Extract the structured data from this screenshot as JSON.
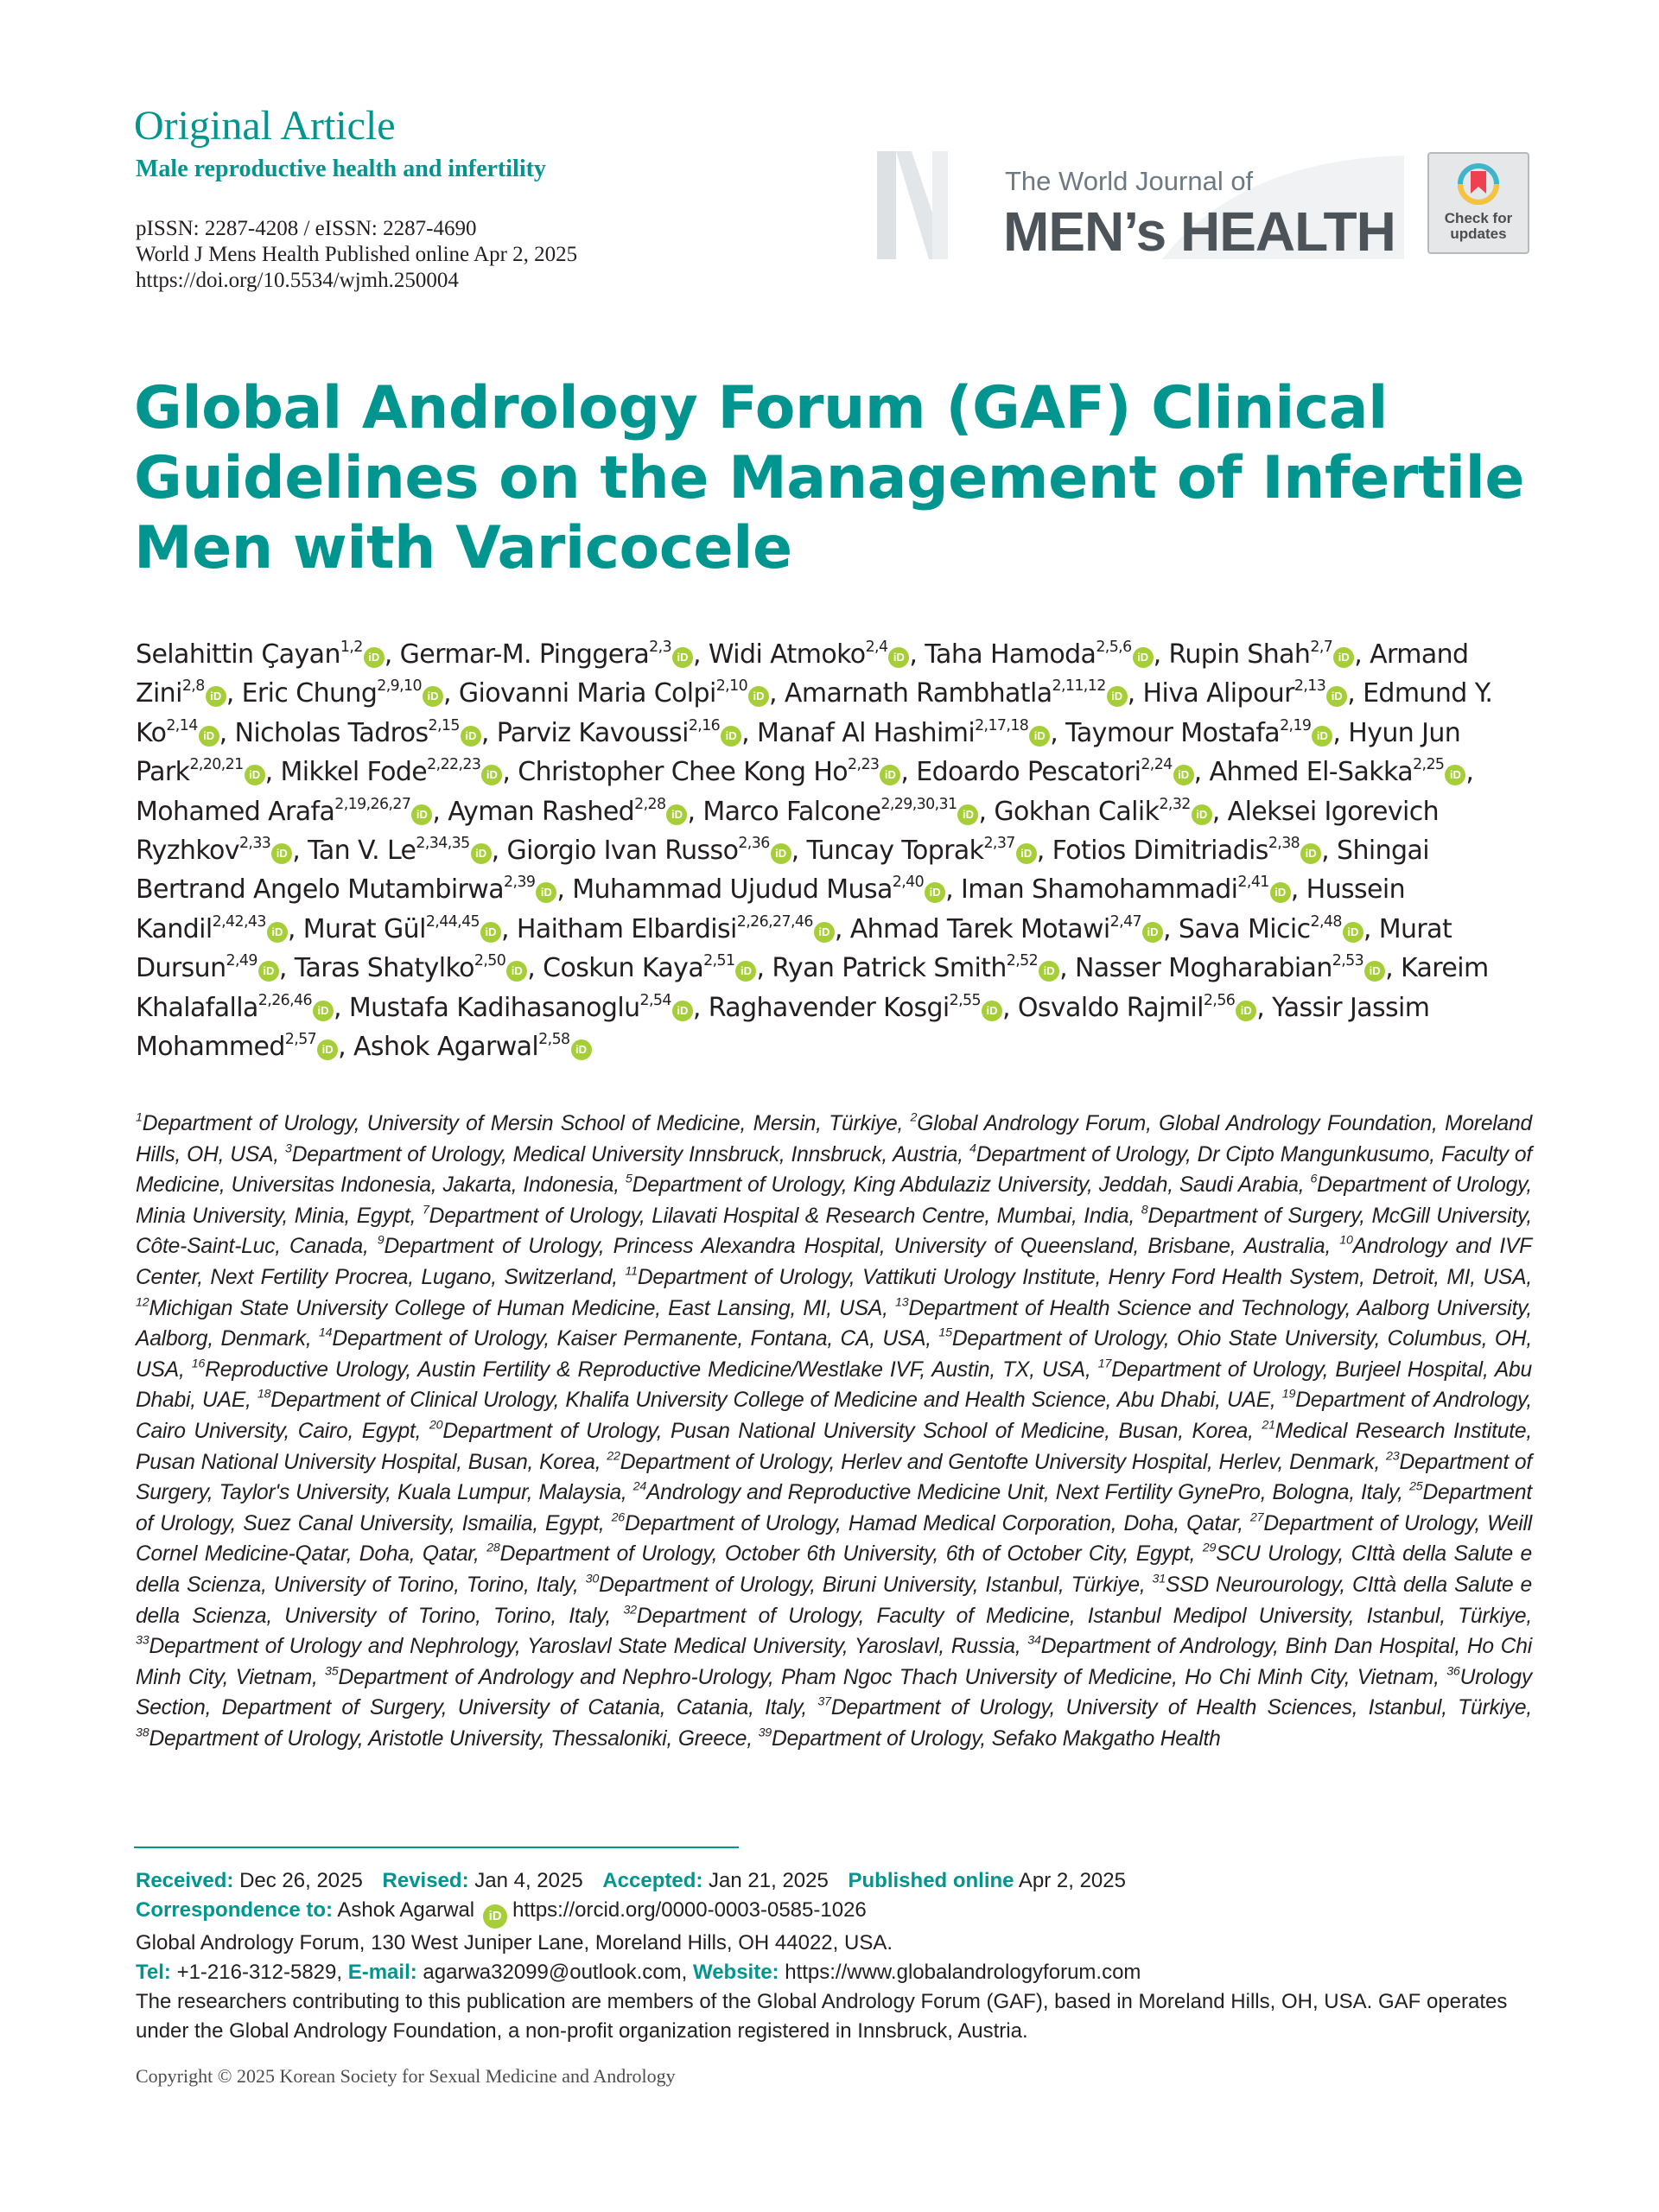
{
  "header": {
    "article_type": "Original Article",
    "section": "Male reproductive health and infertility",
    "issn": "pISSN: 2287-4208 / eISSN: 2287-4690",
    "citation": "World J Mens Health Published online Apr 2, 2025",
    "doi": "https://doi.org/10.5534/wjmh.250004"
  },
  "logo": {
    "line1": "The World Journal of",
    "line2": "MEN’s HEALTH"
  },
  "check_updates": {
    "line1": "Check for",
    "line2": "updates"
  },
  "title": "Global Andrology Forum (GAF) Clinical Guidelines on the Management of Infertile Men with Varicocele",
  "orcid_glyph": "iD",
  "colors": {
    "accent": "#00968f",
    "orcid": "#a6ce39"
  },
  "authors": [
    {
      "name": "Selahittin Çayan",
      "aff": "1,2"
    },
    {
      "name": "Germar-M. Pinggera",
      "aff": "2,3"
    },
    {
      "name": "Widi Atmoko",
      "aff": "2,4"
    },
    {
      "name": "Taha Hamoda",
      "aff": "2,5,6"
    },
    {
      "name": "Rupin Shah",
      "aff": "2,7"
    },
    {
      "name": "Armand Zini",
      "aff": "2,8"
    },
    {
      "name": "Eric Chung",
      "aff": "2,9,10"
    },
    {
      "name": "Giovanni Maria Colpi",
      "aff": "2,10"
    },
    {
      "name": "Amarnath Rambhatla",
      "aff": "2,11,12"
    },
    {
      "name": "Hiva Alipour",
      "aff": "2,13"
    },
    {
      "name": "Edmund Y. Ko",
      "aff": "2,14"
    },
    {
      "name": "Nicholas Tadros",
      "aff": "2,15"
    },
    {
      "name": "Parviz Kavoussi",
      "aff": "2,16"
    },
    {
      "name": "Manaf Al Hashimi",
      "aff": "2,17,18"
    },
    {
      "name": "Taymour Mostafa",
      "aff": "2,19"
    },
    {
      "name": "Hyun Jun Park",
      "aff": "2,20,21"
    },
    {
      "name": "Mikkel Fode",
      "aff": "2,22,23"
    },
    {
      "name": "Christopher Chee Kong Ho",
      "aff": "2,23"
    },
    {
      "name": "Edoardo Pescatori",
      "aff": "2,24"
    },
    {
      "name": "Ahmed El-Sakka",
      "aff": "2,25"
    },
    {
      "name": "Mohamed Arafa",
      "aff": "2,19,26,27"
    },
    {
      "name": "Ayman Rashed",
      "aff": "2,28"
    },
    {
      "name": "Marco Falcone",
      "aff": "2,29,30,31"
    },
    {
      "name": "Gokhan Calik",
      "aff": "2,32"
    },
    {
      "name": "Aleksei Igorevich Ryzhkov",
      "aff": "2,33"
    },
    {
      "name": "Tan V. Le",
      "aff": "2,34,35"
    },
    {
      "name": "Giorgio Ivan Russo",
      "aff": "2,36"
    },
    {
      "name": "Tuncay Toprak",
      "aff": "2,37"
    },
    {
      "name": "Fotios Dimitriadis",
      "aff": "2,38"
    },
    {
      "name": "Shingai Bertrand Angelo Mutambirwa",
      "aff": "2,39"
    },
    {
      "name": "Muhammad Ujudud Musa",
      "aff": "2,40"
    },
    {
      "name": "Iman Shamohammadi",
      "aff": "2,41"
    },
    {
      "name": "Hussein Kandil",
      "aff": "2,42,43"
    },
    {
      "name": "Murat Gül",
      "aff": "2,44,45"
    },
    {
      "name": "Haitham Elbardisi",
      "aff": "2,26,27,46"
    },
    {
      "name": "Ahmad Tarek Motawi",
      "aff": "2,47"
    },
    {
      "name": "Sava Micic",
      "aff": "2,48"
    },
    {
      "name": "Murat Dursun",
      "aff": "2,49"
    },
    {
      "name": "Taras Shatylko",
      "aff": "2,50"
    },
    {
      "name": "Coskun Kaya",
      "aff": "2,51"
    },
    {
      "name": "Ryan Patrick Smith",
      "aff": "2,52"
    },
    {
      "name": "Nasser Mogharabian",
      "aff": "2,53"
    },
    {
      "name": "Kareim Khalafalla",
      "aff": "2,26,46"
    },
    {
      "name": "Mustafa Kadihasanoglu",
      "aff": "2,54"
    },
    {
      "name": "Raghavender Kosgi",
      "aff": "2,55"
    },
    {
      "name": "Osvaldo Rajmil",
      "aff": "2,56"
    },
    {
      "name": "Yassir Jassim Mohammed",
      "aff": "2,57"
    },
    {
      "name": "Ashok Agarwal",
      "aff": "2,58"
    }
  ],
  "affiliations": [
    {
      "n": "1",
      "t": "Department of Urology, University of Mersin School of Medicine, Mersin, Türkiye,"
    },
    {
      "n": "2",
      "t": "Global Andrology Forum, Global Andrology Foundation, Moreland Hills, OH, USA,"
    },
    {
      "n": "3",
      "t": "Department of Urology, Medical University Innsbruck, Innsbruck, Austria,"
    },
    {
      "n": "4",
      "t": "Department of Urology, Dr Cipto Mangunkusumo, Faculty of Medicine, Universitas Indonesia, Jakarta, Indonesia,"
    },
    {
      "n": "5",
      "t": "Department of Urology, King Abdulaziz University, Jeddah, Saudi Arabia,"
    },
    {
      "n": "6",
      "t": "Department of Urology, Minia University, Minia, Egypt,"
    },
    {
      "n": "7",
      "t": "Department of Urology, Lilavati Hospital & Research Centre, Mumbai, India,"
    },
    {
      "n": "8",
      "t": "Department of Surgery, McGill University, Côte-Saint-Luc, Canada,"
    },
    {
      "n": "9",
      "t": "Department of Urology, Princess Alexandra Hospital, University of Queensland, Brisbane, Australia,"
    },
    {
      "n": "10",
      "t": "Andrology and IVF Center, Next Fertility Procrea, Lugano, Switzerland,"
    },
    {
      "n": "11",
      "t": "Department of Urology, Vattikuti Urology Institute, Henry Ford Health System, Detroit, MI, USA,"
    },
    {
      "n": "12",
      "t": "Michigan State University College of Human Medicine, East Lansing, MI, USA,"
    },
    {
      "n": "13",
      "t": "Department of Health Science and Technology, Aalborg University, Aalborg, Denmark,"
    },
    {
      "n": "14",
      "t": "Department of Urology, Kaiser Permanente, Fontana, CA, USA,"
    },
    {
      "n": "15",
      "t": "Department of Urology, Ohio State University, Columbus, OH, USA,"
    },
    {
      "n": "16",
      "t": "Reproductive Urology, Austin Fertility & Reproductive Medicine/Westlake IVF, Austin, TX, USA,"
    },
    {
      "n": "17",
      "t": "Department of Urology, Burjeel Hospital, Abu Dhabi, UAE,"
    },
    {
      "n": "18",
      "t": "Department of Clinical Urology, Khalifa University College of Medicine and Health Science, Abu Dhabi, UAE,"
    },
    {
      "n": "19",
      "t": "Department of Andrology, Cairo University, Cairo, Egypt,"
    },
    {
      "n": "20",
      "t": "Department of Urology, Pusan National University School of Medicine, Busan, Korea,"
    },
    {
      "n": "21",
      "t": "Medical Research Institute, Pusan National University Hospital, Busan, Korea,"
    },
    {
      "n": "22",
      "t": "Department of Urology, Herlev and Gentofte University Hospital, Herlev, Denmark,"
    },
    {
      "n": "23",
      "t": "Department of Surgery, Taylor's University, Kuala Lumpur, Malaysia,"
    },
    {
      "n": "24",
      "t": "Andrology and Reproductive Medicine Unit, Next Fertility GynePro, Bologna, Italy,"
    },
    {
      "n": "25",
      "t": "Department of Urology, Suez Canal University, Ismailia, Egypt,"
    },
    {
      "n": "26",
      "t": "Department of Urology, Hamad Medical Corporation, Doha, Qatar,"
    },
    {
      "n": "27",
      "t": "Department of Urology, Weill Cornel Medicine-Qatar, Doha, Qatar,"
    },
    {
      "n": "28",
      "t": "Department of Urology, October 6th University, 6th of October City, Egypt,"
    },
    {
      "n": "29",
      "t": "SCU Urology, CIttà della Salute e della Scienza, University of Torino, Torino, Italy,"
    },
    {
      "n": "30",
      "t": "Department of Urology, Biruni University, Istanbul, Türkiye,"
    },
    {
      "n": "31",
      "t": "SSD Neurourology, CIttà della Salute e della Scienza, University of Torino, Torino, Italy,"
    },
    {
      "n": "32",
      "t": "Department of Urology, Faculty of Medicine, Istanbul Medipol University, Istanbul, Türkiye,"
    },
    {
      "n": "33",
      "t": "Department of Urology and Nephrology, Yaroslavl State Medical University, Yaroslavl, Russia,"
    },
    {
      "n": "34",
      "t": "Department of Andrology, Binh Dan Hospital, Ho Chi Minh City, Vietnam,"
    },
    {
      "n": "35",
      "t": "Department of Andrology and Nephro-Urology, Pham Ngoc Thach University of Medicine, Ho Chi Minh City, Vietnam,"
    },
    {
      "n": "36",
      "t": "Urology Section, Department of Surgery, University of Catania, Catania, Italy,"
    },
    {
      "n": "37",
      "t": "Department of Urology, University of Health Sciences, Istanbul, Türkiye,"
    },
    {
      "n": "38",
      "t": "Department of Urology, Aristotle University, Thessaloniki, Greece,"
    },
    {
      "n": "39",
      "t": "Department of Urology, Sefako Makgatho Health"
    }
  ],
  "footer": {
    "received_label": "Received:",
    "received": "Dec 26, 2025",
    "revised_label": "Revised:",
    "revised": "Jan 4, 2025",
    "accepted_label": "Accepted:",
    "accepted": "Jan 21, 2025",
    "published_label": "Published online",
    "published": "Apr 2, 2025",
    "correspondence_label": "Correspondence to:",
    "correspondence_name": "Ashok Agarwal",
    "orcid_url": "https://orcid.org/0000-0003-0585-1026",
    "address": "Global Andrology Forum, 130 West Juniper Lane, Moreland Hills, OH 44022, USA.",
    "tel_label": "Tel:",
    "tel": "+1-216-312-5829,",
    "email_label": "E-mail:",
    "email": "agarwa32099@outlook.com,",
    "website_label": "Website:",
    "website": "https://www.globalandrologyforum.com",
    "note": "The researchers contributing to this publication are members of the Global Andrology Forum (GAF), based in Moreland Hills, OH, USA. GAF operates under the Global Andrology Foundation, a non-profit organization registered in Innsbruck, Austria."
  },
  "copyright": "Copyright © 2025 Korean Society for Sexual Medicine and Andrology"
}
